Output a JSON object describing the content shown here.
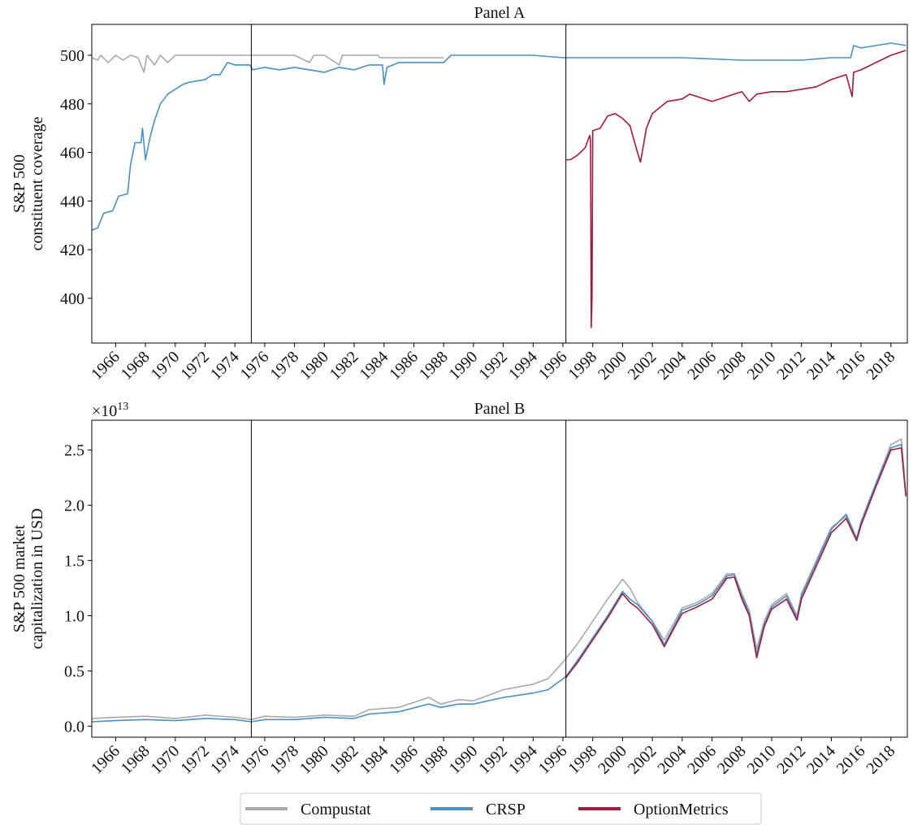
{
  "chart_data": [
    {
      "type": "line",
      "title": "Panel A",
      "ylabel": [
        "S&P 500",
        "constituent coverage"
      ],
      "xlim": [
        1964.4,
        2019.1
      ],
      "xticks": [
        1966,
        1968,
        1970,
        1972,
        1974,
        1976,
        1978,
        1980,
        1982,
        1984,
        1986,
        1988,
        1990,
        1992,
        1994,
        1996,
        1998,
        2000,
        2002,
        2004,
        2006,
        2008,
        2010,
        2012,
        2014,
        2016,
        2018
      ],
      "ylim": [
        381.6,
        512.7
      ],
      "yticks": [
        400,
        420,
        440,
        460,
        480,
        500
      ],
      "vlines": [
        1975.1,
        1996.2
      ],
      "series": [
        {
          "name": "Compustat",
          "color": "#a9a9ab",
          "x": [
            1964.4,
            1964.8,
            1965.0,
            1965.5,
            1966.0,
            1966.5,
            1967.0,
            1967.5,
            1967.9,
            1968.1,
            1968.6,
            1969.0,
            1969.5,
            1970.0,
            1972.0,
            1974.0,
            1976.0,
            1978.0,
            1979.0,
            1979.3,
            1980.0,
            1981.0,
            1981.2,
            1982.0,
            1983.6,
            1983.7,
            1988.0
          ],
          "values": [
            499,
            498,
            500,
            497,
            500,
            498,
            500,
            499,
            493,
            500,
            496,
            500,
            497,
            500,
            500,
            500,
            500,
            500,
            497,
            500,
            500,
            496,
            500,
            500,
            500,
            499,
            499
          ]
        },
        {
          "name": "CRSP",
          "color": "#4a90c0",
          "x": [
            1964.4,
            1964.8,
            1965.2,
            1965.8,
            1966.2,
            1966.8,
            1967.0,
            1967.3,
            1967.7,
            1967.8,
            1968.0,
            1968.3,
            1968.6,
            1969.0,
            1969.5,
            1970.0,
            1970.5,
            1971.0,
            1972.0,
            1972.5,
            1973.0,
            1973.5,
            1974.0,
            1975.0,
            1975.2,
            1976.0,
            1977.0,
            1978.0,
            1979.0,
            1980.0,
            1981.0,
            1982.0,
            1983.0,
            1983.9,
            1984.0,
            1984.2,
            1985.0,
            1987.0,
            1988.0,
            1988.5,
            1990.0,
            1992.0,
            1994.0,
            1996.0,
            2000.0,
            2004.0,
            2008.0,
            2012.0,
            2014.0,
            2015.3,
            2015.5,
            2016.0,
            2017.0,
            2018.0,
            2019.0
          ],
          "values": [
            428,
            429,
            435,
            436,
            442,
            443,
            455,
            464,
            464,
            470,
            457,
            466,
            473,
            480,
            484,
            486,
            488,
            489,
            490,
            492,
            492,
            497,
            496,
            496,
            494,
            495,
            494,
            495,
            494,
            493,
            495,
            494,
            496,
            496,
            488,
            495,
            497,
            497,
            497,
            500,
            500,
            500,
            500,
            499,
            499,
            499,
            498,
            498,
            499,
            499,
            504,
            503,
            504,
            505,
            504
          ]
        },
        {
          "name": "OptionMetrics",
          "color": "#a01a3c",
          "x": [
            1996.2,
            1996.5,
            1997.0,
            1997.5,
            1997.8,
            1997.85,
            1997.9,
            1997.95,
            1998.0,
            1998.5,
            1999.0,
            1999.5,
            2000.0,
            2000.5,
            2001.0,
            2001.2,
            2001.6,
            2002.0,
            2003.0,
            2004.0,
            2004.5,
            2005.0,
            2006.0,
            2007.0,
            2008.0,
            2008.5,
            2009.0,
            2010.0,
            2011.0,
            2012.0,
            2013.0,
            2014.0,
            2015.0,
            2015.4,
            2015.5,
            2016.0,
            2017.0,
            2018.0,
            2019.0
          ],
          "values": [
            457,
            457,
            459,
            462,
            467,
            465,
            388,
            400,
            469,
            470,
            475,
            476,
            474,
            471,
            460,
            456,
            470,
            476,
            481,
            482,
            484,
            483,
            481,
            483,
            485,
            481,
            484,
            485,
            485,
            486,
            487,
            490,
            492,
            483,
            493,
            494,
            497,
            500,
            502
          ]
        }
      ]
    },
    {
      "type": "line",
      "title": "Panel B",
      "ylabel": [
        "S&P 500 market",
        "capitalization in USD"
      ],
      "y_scale_base": "×10",
      "y_scale_exponent": "13",
      "xlim": [
        1964.4,
        2019.1
      ],
      "xticks": [
        1966,
        1968,
        1970,
        1972,
        1974,
        1976,
        1978,
        1980,
        1982,
        1984,
        1986,
        1988,
        1990,
        1992,
        1994,
        1996,
        1998,
        2000,
        2002,
        2004,
        2006,
        2008,
        2010,
        2012,
        2014,
        2016,
        2018
      ],
      "ylim": [
        -0.1,
        2.77
      ],
      "yticks": [
        {
          "value": 0,
          "label": "0.0"
        },
        0.5,
        {
          "value": 1,
          "label": "1.0"
        },
        1.5,
        {
          "value": 2,
          "label": "2.0"
        },
        2.5
      ],
      "vlines": [
        1975.1,
        1996.2
      ],
      "series": [
        {
          "color": "#a9a9ab",
          "x": [
            1964.4,
            1966,
            1968,
            1970,
            1972,
            1974,
            1975.1,
            1976,
            1978,
            1980,
            1982,
            1983,
            1985,
            1987,
            1987.8,
            1989,
            1990,
            1992,
            1994,
            1995,
            1996,
            1997,
            1998,
            1999,
            2000,
            2000.5,
            2001,
            2002,
            2002.8,
            2003.5,
            2004,
            2005,
            2006,
            2007,
            2007.5,
            2008,
            2008.5,
            2009,
            2009.5,
            2010,
            2011,
            2011.7,
            2012,
            2013,
            2014,
            2015,
            2015.7,
            2016,
            2017,
            2018,
            2018.7,
            2019
          ],
          "values": [
            0.07,
            0.08,
            0.09,
            0.07,
            0.1,
            0.08,
            0.06,
            0.09,
            0.08,
            0.1,
            0.09,
            0.15,
            0.17,
            0.26,
            0.2,
            0.24,
            0.23,
            0.33,
            0.38,
            0.43,
            0.58,
            0.75,
            0.95,
            1.15,
            1.33,
            1.25,
            1.12,
            0.95,
            0.78,
            0.95,
            1.07,
            1.12,
            1.2,
            1.38,
            1.38,
            1.2,
            1.05,
            0.7,
            0.95,
            1.1,
            1.2,
            1.0,
            1.2,
            1.5,
            1.8,
            1.9,
            1.7,
            1.85,
            2.2,
            2.55,
            2.6,
            2.1
          ]
        },
        {
          "color": "#4a90c0",
          "x": [
            1964.4,
            1966,
            1968,
            1970,
            1972,
            1974,
            1975.1,
            1976,
            1978,
            1980,
            1982,
            1983,
            1985,
            1987,
            1987.8,
            1989,
            1990,
            1992,
            1994,
            1995,
            1996.2,
            1997,
            1998,
            1999,
            2000,
            2000.5,
            2001,
            2002,
            2002.8,
            2003.5,
            2004,
            2005,
            2006,
            2007,
            2007.5,
            2008,
            2008.5,
            2009,
            2009.5,
            2010,
            2011,
            2011.7,
            2012,
            2013,
            2014,
            2015,
            2015.7,
            2016,
            2017,
            2018,
            2018.7,
            2019
          ],
          "values": [
            0.04,
            0.05,
            0.06,
            0.05,
            0.07,
            0.06,
            0.04,
            0.06,
            0.06,
            0.08,
            0.07,
            0.11,
            0.13,
            0.2,
            0.17,
            0.2,
            0.2,
            0.26,
            0.3,
            0.33,
            0.45,
            0.6,
            0.8,
            1.0,
            1.22,
            1.15,
            1.1,
            0.95,
            0.74,
            0.92,
            1.05,
            1.1,
            1.18,
            1.36,
            1.37,
            1.18,
            1.02,
            0.65,
            0.92,
            1.08,
            1.18,
            0.98,
            1.18,
            1.48,
            1.78,
            1.92,
            1.7,
            1.85,
            2.2,
            2.52,
            2.55,
            2.1
          ]
        },
        {
          "color": "#a01a3c",
          "x": [
            1996.2,
            1997,
            1998,
            1999,
            2000,
            2000.5,
            2001,
            2002,
            2002.8,
            2003.5,
            2004,
            2005,
            2006,
            2007,
            2007.5,
            2008,
            2008.5,
            2009,
            2009.5,
            2010,
            2011,
            2011.7,
            2012,
            2013,
            2014,
            2015,
            2015.7,
            2016,
            2017,
            2018,
            2018.7,
            2019
          ],
          "values": [
            0.44,
            0.58,
            0.78,
            0.98,
            1.2,
            1.12,
            1.07,
            0.92,
            0.72,
            0.9,
            1.02,
            1.08,
            1.15,
            1.34,
            1.35,
            1.15,
            1.0,
            0.62,
            0.9,
            1.06,
            1.15,
            0.96,
            1.15,
            1.45,
            1.75,
            1.88,
            1.68,
            1.82,
            2.17,
            2.5,
            2.52,
            2.08
          ]
        }
      ]
    }
  ]
}
